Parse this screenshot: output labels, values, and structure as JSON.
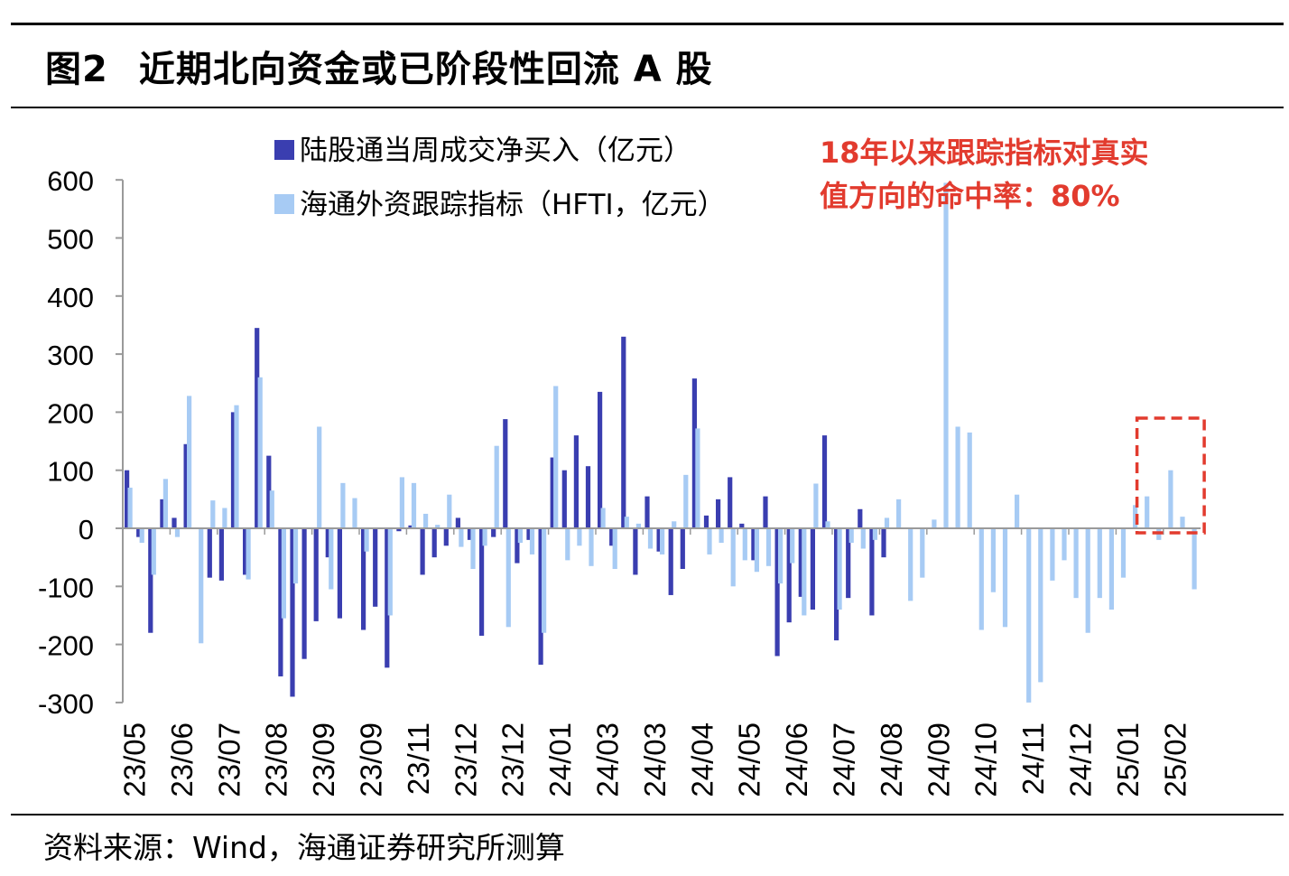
{
  "title": {
    "label": "图2",
    "text": "近期北向资金或已阶段性回流 A 股"
  },
  "source": "资料来源：Wind，海通证券研究所测算",
  "annotation": {
    "line1": "18年以来跟踪指标对真实",
    "line2": "值方向的命中率：80%"
  },
  "colors": {
    "dark": "#3a3eb0",
    "light": "#a7cbf4",
    "annotation": "#e23b2e",
    "highlight": "#e23b2e"
  },
  "chart_data": {
    "type": "bar",
    "ylim": [
      -300,
      600
    ],
    "yticks": [
      600,
      500,
      400,
      300,
      200,
      100,
      0,
      -100,
      -200,
      -300
    ],
    "grid": false,
    "legend_position": "top-center",
    "x_tick_labels": [
      "23/05",
      "23/06",
      "23/07",
      "23/08",
      "23/09",
      "23/09",
      "23/11",
      "23/12",
      "23/12",
      "24/01",
      "24/03",
      "24/03",
      "24/04",
      "24/05",
      "24/06",
      "24/07",
      "24/08",
      "24/09",
      "24/10",
      "24/11",
      "24/12",
      "25/01",
      "25/02"
    ],
    "highlight_weeks": [
      86,
      90
    ],
    "series": [
      {
        "name": "陆股通当周成交净买入（亿元）",
        "values": [
          100,
          -15,
          -180,
          50,
          18,
          145,
          0,
          -85,
          -90,
          200,
          -80,
          345,
          125,
          -255,
          -290,
          -225,
          -160,
          -50,
          -155,
          0,
          -175,
          -135,
          -240,
          -5,
          5,
          -80,
          -50,
          -30,
          18,
          -20,
          -185,
          -15,
          188,
          -60,
          -20,
          -235,
          122,
          100,
          160,
          107,
          235,
          -30,
          330,
          -80,
          55,
          -40,
          -115,
          -70,
          258,
          22,
          50,
          88,
          8,
          -55,
          55,
          -220,
          -162,
          -118,
          -140,
          160,
          -193,
          -120,
          33,
          -150,
          -50,
          0,
          0,
          0,
          0,
          0,
          0,
          0,
          0,
          0,
          0,
          0,
          0,
          0,
          0,
          0,
          0,
          0,
          0,
          0,
          0,
          0,
          0,
          0,
          0,
          0,
          0,
          0,
          0
        ]
      },
      {
        "name": "海通外资跟踪指标（HFTI，亿元）",
        "values": [
          70,
          -25,
          -80,
          85,
          -15,
          228,
          -198,
          48,
          35,
          212,
          -88,
          260,
          65,
          -155,
          -95,
          0,
          175,
          -105,
          78,
          52,
          -40,
          0,
          -150,
          88,
          78,
          25,
          6,
          58,
          -32,
          -70,
          -30,
          142,
          -170,
          -25,
          -45,
          -180,
          245,
          -55,
          -30,
          -65,
          35,
          -70,
          20,
          8,
          -35,
          -45,
          12,
          92,
          172,
          -45,
          -25,
          -100,
          -55,
          -75,
          -65,
          -95,
          -60,
          -150,
          77,
          12,
          -140,
          -25,
          -35,
          -20,
          18,
          50,
          -125,
          -85,
          15,
          595,
          175,
          165,
          -175,
          -110,
          -170,
          58,
          -300,
          -265,
          -90,
          -55,
          -120,
          -180,
          -120,
          -140,
          -85,
          40,
          55,
          -20,
          100,
          20,
          -105
        ]
      }
    ]
  }
}
